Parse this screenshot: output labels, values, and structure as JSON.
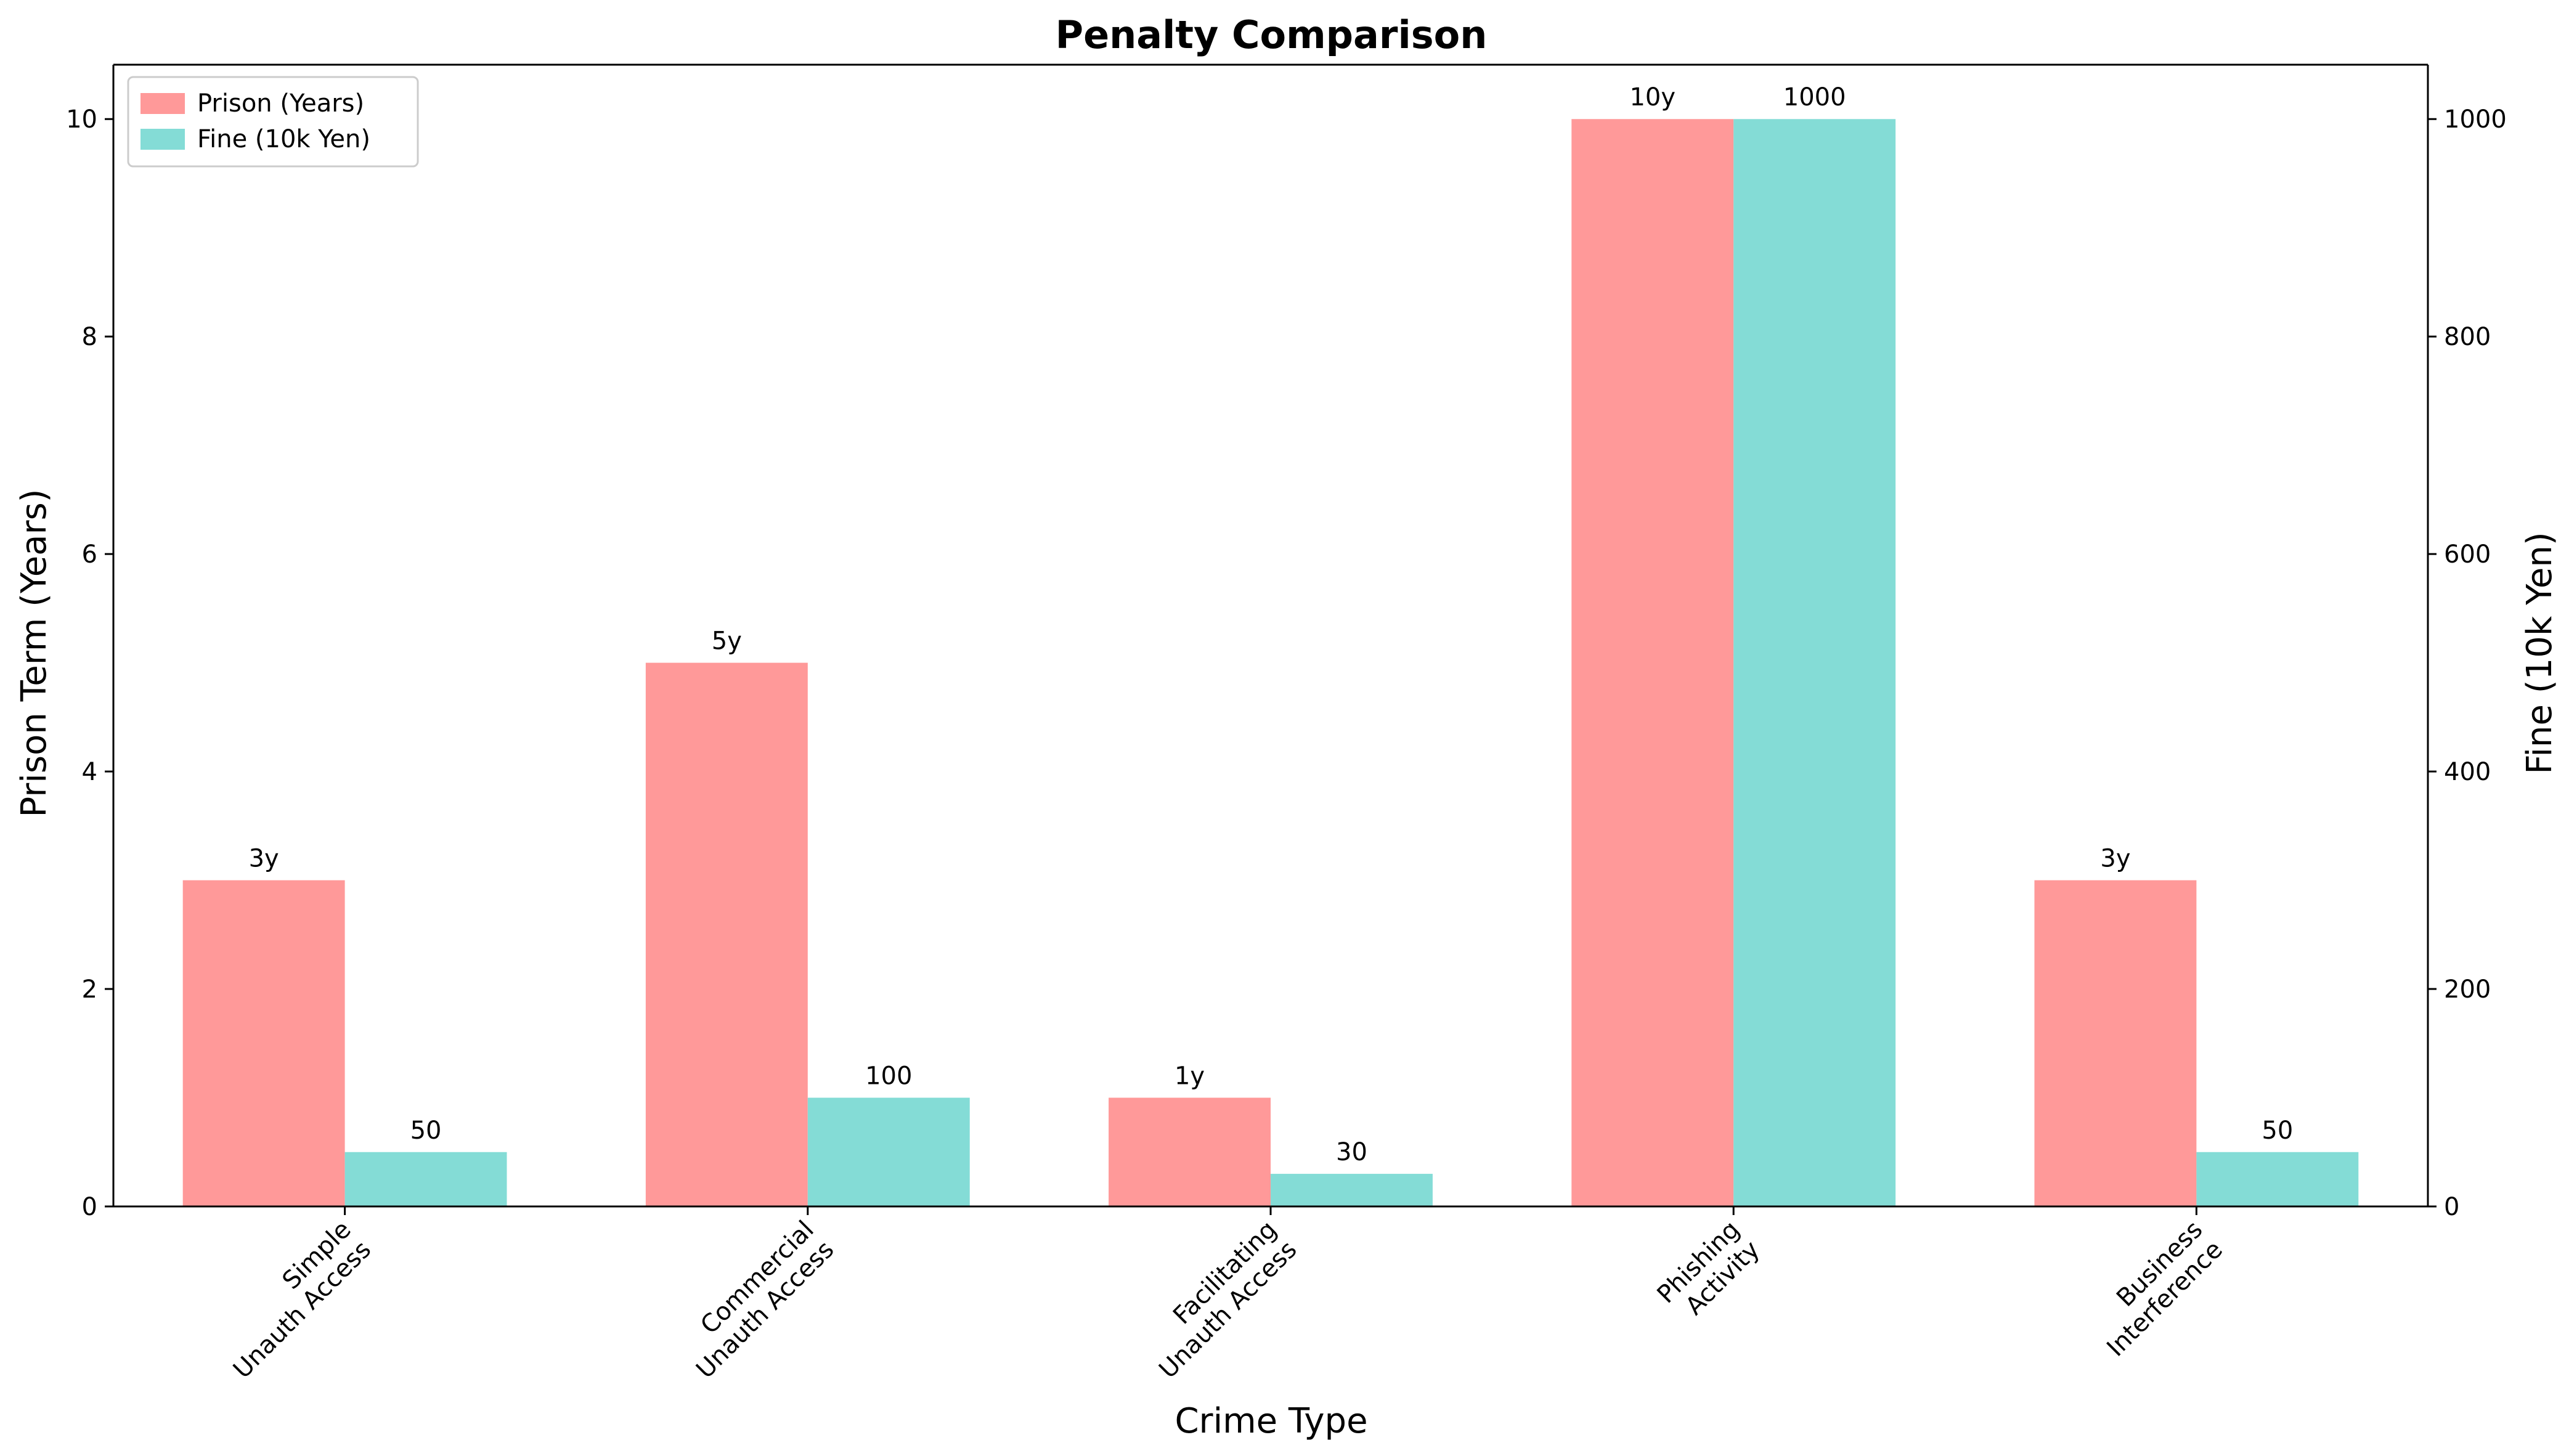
{
  "chart_data": {
    "type": "bar",
    "title": "Penalty Comparison",
    "xlabel": "Crime Type",
    "ylabel": "Prison Term (Years)",
    "ylabel_right": "Fine (10k Yen)",
    "categories": [
      [
        "Simple",
        "Unauth Access"
      ],
      [
        "Commercial",
        "Unauth Access"
      ],
      [
        "Facilitating",
        "Unauth Access"
      ],
      [
        "Phishing",
        "Activity"
      ],
      [
        "Business",
        "Interference"
      ]
    ],
    "series": [
      {
        "name": "Prison (Years)",
        "axis": "left",
        "color": "#ff9999",
        "values": [
          3,
          5,
          1,
          10,
          3
        ],
        "labels": [
          "3y",
          "5y",
          "1y",
          "10y",
          "3y"
        ]
      },
      {
        "name": "Fine (10k Yen)",
        "axis": "right",
        "color": "#84dcd6",
        "values": [
          50,
          100,
          30,
          1000,
          50
        ],
        "labels": [
          "50",
          "100",
          "30",
          "1000",
          "50"
        ]
      }
    ],
    "ylim": [
      0,
      10.5
    ],
    "ylim_right": [
      0,
      1050
    ],
    "yticks": [
      0,
      2,
      4,
      6,
      8,
      10
    ],
    "yticks_right": [
      0,
      200,
      400,
      600,
      800,
      1000
    ],
    "legend_position": "top-left",
    "grid": false
  }
}
